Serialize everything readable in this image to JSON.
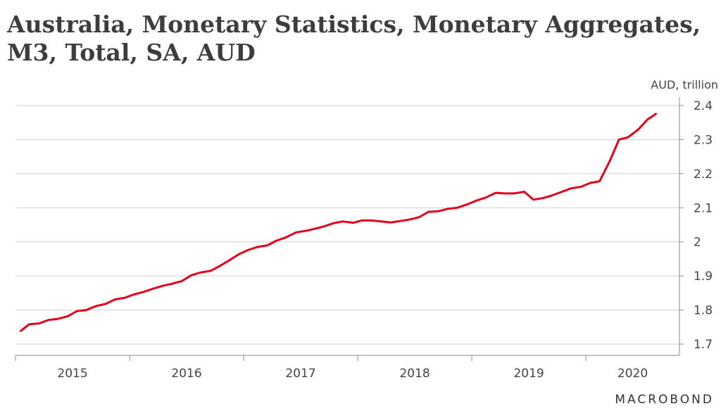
{
  "chart_data": {
    "type": "line",
    "title": "Australia, Monetary Statistics, Monetary Aggregates, M3, Total, SA, AUD",
    "y_axis_label": "AUD, trillion",
    "source": "MACROBOND",
    "x": [
      2015.04,
      2015.12,
      2015.21,
      2015.29,
      2015.37,
      2015.46,
      2015.54,
      2015.62,
      2015.71,
      2015.79,
      2015.87,
      2015.96,
      2016.04,
      2016.12,
      2016.21,
      2016.29,
      2016.37,
      2016.46,
      2016.54,
      2016.62,
      2016.71,
      2016.79,
      2016.87,
      2016.96,
      2017.04,
      2017.12,
      2017.21,
      2017.29,
      2017.37,
      2017.46,
      2017.54,
      2017.62,
      2017.71,
      2017.79,
      2017.87,
      2017.96,
      2018.04,
      2018.12,
      2018.21,
      2018.29,
      2018.37,
      2018.46,
      2018.54,
      2018.62,
      2018.71,
      2018.79,
      2018.87,
      2018.96,
      2019.04,
      2019.12,
      2019.21,
      2019.29,
      2019.37,
      2019.46,
      2019.54,
      2019.62,
      2019.71,
      2019.79,
      2019.87,
      2019.96,
      2020.04,
      2020.12,
      2020.21,
      2020.29,
      2020.37,
      2020.46,
      2020.54,
      2020.62
    ],
    "series": [
      {
        "name": "M3, Total, SA",
        "color": "#e3001b",
        "values": [
          1.737,
          1.758,
          1.761,
          1.771,
          1.774,
          1.782,
          1.797,
          1.8,
          1.812,
          1.818,
          1.831,
          1.836,
          1.846,
          1.853,
          1.863,
          1.871,
          1.877,
          1.885,
          1.902,
          1.91,
          1.915,
          1.929,
          1.945,
          1.964,
          1.976,
          1.985,
          1.99,
          2.004,
          2.013,
          2.028,
          2.032,
          2.038,
          2.046,
          2.055,
          2.06,
          2.056,
          2.063,
          2.063,
          2.06,
          2.057,
          2.061,
          2.066,
          2.073,
          2.088,
          2.09,
          2.097,
          2.1,
          2.11,
          2.121,
          2.13,
          2.144,
          2.142,
          2.142,
          2.147,
          2.124,
          2.128,
          2.137,
          2.147,
          2.157,
          2.162,
          2.173,
          2.178,
          2.238,
          2.3,
          2.307,
          2.33,
          2.359,
          2.377
        ]
      }
    ],
    "xlim": [
      2015,
      2020.82
    ],
    "xticks": [
      2015,
      2016,
      2017,
      2018,
      2019,
      2020
    ],
    "ylim": [
      1.7,
      2.4
    ],
    "yticks": [
      1.7,
      1.8,
      1.9,
      2.0,
      2.1,
      2.2,
      2.3,
      2.4
    ],
    "grid": true
  }
}
